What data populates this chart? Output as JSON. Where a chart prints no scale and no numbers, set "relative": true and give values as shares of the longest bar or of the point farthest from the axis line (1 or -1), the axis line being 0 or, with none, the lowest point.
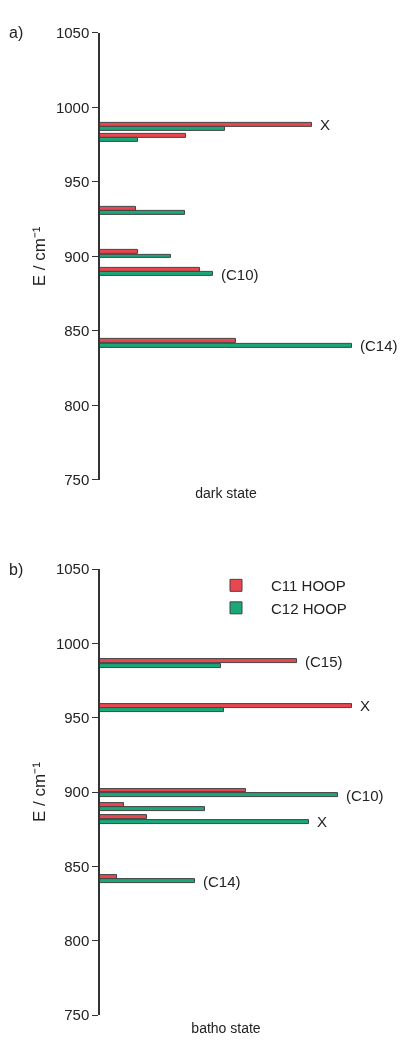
{
  "chart_data": [
    {
      "type": "bar",
      "title": "a)",
      "xlabel": "dark state",
      "ylabel": "E / cm⁻¹",
      "orientation": "horizontal",
      "relative": true,
      "ylim": [
        750,
        1050
      ],
      "yticks": [
        750,
        800,
        850,
        900,
        950,
        1000,
        1050
      ],
      "legend": false,
      "series": [
        {
          "color": "#e8474f",
          "x": [
            988.5,
            981,
            932,
            903,
            891,
            843.5
          ],
          "values": [
            0.843,
            0.34,
            0.142,
            0.149,
            0.398,
            0.539
          ]
        },
        {
          "color": "#1aa779",
          "x": [
            985.5,
            978,
            929,
            900,
            888,
            840
          ],
          "values": [
            0.497,
            0.149,
            0.339,
            0.281,
            0.448,
            1
          ]
        }
      ],
      "annotations": [
        {
          "text": "X",
          "x": 0.843,
          "y": 988.5
        },
        {
          "text": "(C10)",
          "x": 0.448,
          "y": 888
        },
        {
          "text": "(C14)",
          "x": 1,
          "y": 840
        }
      ]
    },
    {
      "type": "bar",
      "title": "b)",
      "xlabel": "batho state",
      "ylabel": "E / cm⁻¹",
      "orientation": "horizontal",
      "relative": true,
      "ylim": [
        750,
        1050
      ],
      "yticks": [
        750,
        800,
        850,
        900,
        950,
        1000,
        1050
      ],
      "legend": "top right",
      "series": [
        {
          "name": "C11 HOOP",
          "color": "#e8474f",
          "x": [
            988,
            958,
            901,
            891,
            883,
            843
          ],
          "values": [
            0.781,
            1,
            0.578,
            0.097,
            0.186,
            0.067
          ]
        },
        {
          "name": "C12 HOOP",
          "color": "#1aa779",
          "x": [
            984.5,
            955,
            898,
            888.5,
            880,
            840
          ],
          "values": [
            0.482,
            0.493,
            0.945,
            0.418,
            0.83,
            0.378
          ]
        }
      ],
      "annotations": [
        {
          "text": "(C15)",
          "x": 0.781,
          "y": 988
        },
        {
          "text": "X",
          "x": 1,
          "y": 958
        },
        {
          "text": "(C10)",
          "x": 0.945,
          "y": 898
        },
        {
          "text": "X",
          "x": 0.83,
          "y": 880
        },
        {
          "text": "(C14)",
          "x": 0.378,
          "y": 840
        }
      ]
    }
  ]
}
